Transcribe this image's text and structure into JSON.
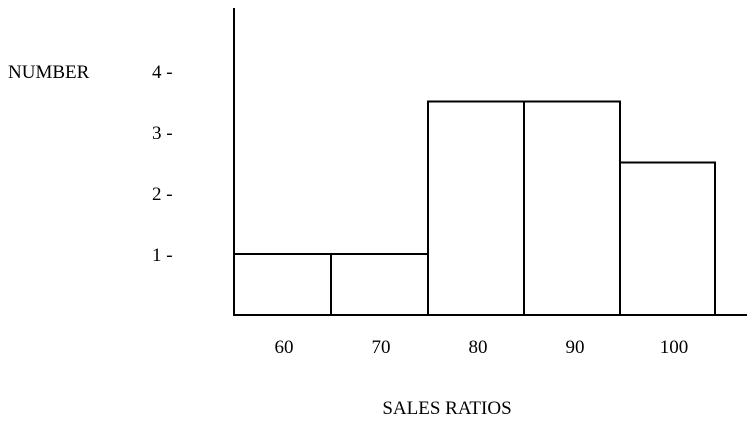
{
  "chart_data": {
    "type": "bar",
    "categories": [
      "60",
      "70",
      "80",
      "90",
      "100"
    ],
    "values": [
      1,
      1,
      3.5,
      3.5,
      2.5
    ],
    "title": "",
    "xlabel": "SALES RATIOS",
    "ylabel": "NUMBER",
    "yticks": [
      {
        "value": 1,
        "label": "1  -"
      },
      {
        "value": 2,
        "label": "2  -"
      },
      {
        "value": 3,
        "label": "3  -"
      },
      {
        "value": 4,
        "label": "4  -"
      }
    ],
    "ylim": [
      0,
      4.5
    ],
    "grid": false,
    "legend": "none",
    "colors": {
      "bar_fill": "#ffffff",
      "stroke": "#000000"
    }
  }
}
